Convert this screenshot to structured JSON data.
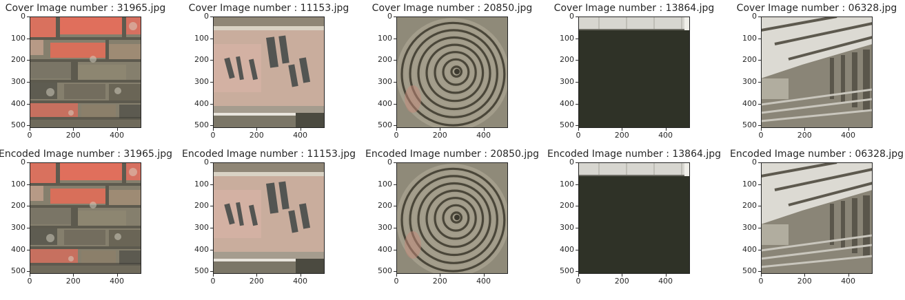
{
  "rows": [
    {
      "kind": "cover",
      "panels": [
        {
          "title": "Cover Image number : 31965.jpg",
          "scene": "brick-wall-icon"
        },
        {
          "title": "Cover Image number : 11153.jpg",
          "scene": "graffiti-wall-icon"
        },
        {
          "title": "Cover Image number : 20850.jpg",
          "scene": "spiral-icon"
        },
        {
          "title": "Cover Image number : 13864.jpg",
          "scene": "dark-room-icon"
        },
        {
          "title": "Cover Image number : 06328.jpg",
          "scene": "hallway-icon"
        }
      ]
    },
    {
      "kind": "encoded",
      "panels": [
        {
          "title": "Encoded Image number : 31965.jpg",
          "scene": "brick-wall-icon"
        },
        {
          "title": "Encoded Image number : 11153.jpg",
          "scene": "graffiti-wall-icon"
        },
        {
          "title": "Encoded Image number : 20850.jpg",
          "scene": "spiral-icon"
        },
        {
          "title": "Encoded Image number : 13864.jpg",
          "scene": "dark-room-icon"
        },
        {
          "title": "Encoded Image number : 06328.jpg",
          "scene": "hallway-icon"
        }
      ]
    }
  ],
  "axes": {
    "y_ticks": [
      "0",
      "100",
      "200",
      "300",
      "400",
      "500"
    ],
    "x_ticks": [
      "0",
      "200",
      "400"
    ]
  }
}
